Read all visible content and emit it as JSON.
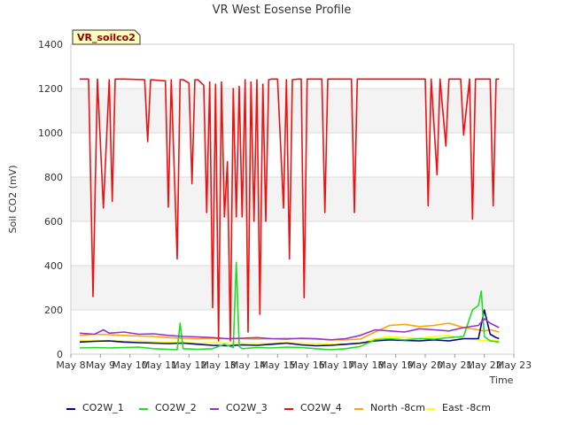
{
  "chart_data": {
    "type": "line",
    "title": "VR West Eosense Profile",
    "site_label": "VR_soilco2",
    "xlabel": "Time",
    "ylabel": "Soil CO2 (mV)",
    "ylim": [
      0,
      1400
    ],
    "yticks": [
      0,
      200,
      400,
      600,
      800,
      1000,
      1200,
      1400
    ],
    "xlim": [
      "May 8",
      "May 23"
    ],
    "xtick_labels": [
      "May 8",
      "May 9",
      "May 10",
      "May 11",
      "May 12",
      "May 13",
      "May 14",
      "May 15",
      "May 16",
      "May 17",
      "May 18",
      "May 19",
      "May 20",
      "May 21",
      "May 22",
      "May 23"
    ],
    "grid": true,
    "legend_position": "bottom",
    "series": [
      {
        "name": "CO2W_1",
        "color": "#00008b",
        "x": [
          8.3,
          8.8,
          9.3,
          9.8,
          10.3,
          10.8,
          11.3,
          11.8,
          12.3,
          12.8,
          13.3,
          13.8,
          14.3,
          14.8,
          15.3,
          15.8,
          16.3,
          16.8,
          17.3,
          17.8,
          18.3,
          18.8,
          19.3,
          19.8,
          20.3,
          20.8,
          21.3,
          21.8,
          22.0,
          22.2,
          22.4,
          22.5
        ],
        "y": [
          55,
          58,
          60,
          55,
          52,
          50,
          48,
          50,
          45,
          40,
          38,
          42,
          40,
          45,
          50,
          42,
          38,
          40,
          45,
          50,
          60,
          65,
          62,
          60,
          65,
          60,
          70,
          70,
          200,
          90,
          75,
          70
        ]
      },
      {
        "name": "CO2W_2",
        "color": "#22dd22",
        "x": [
          8.3,
          8.8,
          9.3,
          9.8,
          10.3,
          10.8,
          11.3,
          11.6,
          11.7,
          11.8,
          12.3,
          12.8,
          13.2,
          13.5,
          13.6,
          13.7,
          13.8,
          14.3,
          14.8,
          15.3,
          15.8,
          16.3,
          16.8,
          17.3,
          17.8,
          18.3,
          18.8,
          19.3,
          19.8,
          20.3,
          20.8,
          21.3,
          21.6,
          21.8,
          21.9,
          22.0,
          22.2,
          22.5
        ],
        "y": [
          28,
          30,
          28,
          30,
          32,
          25,
          22,
          20,
          140,
          25,
          22,
          25,
          45,
          30,
          415,
          35,
          25,
          30,
          28,
          32,
          30,
          25,
          20,
          25,
          35,
          65,
          70,
          65,
          70,
          68,
          75,
          80,
          200,
          220,
          285,
          80,
          60,
          55
        ]
      },
      {
        "name": "CO2W_3",
        "color": "#9932cc",
        "x": [
          8.3,
          8.8,
          9.1,
          9.3,
          9.8,
          10.3,
          10.8,
          11.3,
          11.8,
          12.3,
          12.8,
          13.3,
          13.8,
          14.3,
          14.8,
          15.3,
          15.8,
          16.3,
          16.8,
          17.3,
          17.8,
          18.3,
          18.8,
          19.3,
          19.8,
          20.3,
          20.8,
          21.3,
          21.8,
          22.0,
          22.2,
          22.5
        ],
        "y": [
          95,
          90,
          110,
          95,
          100,
          90,
          92,
          85,
          80,
          78,
          75,
          70,
          72,
          75,
          70,
          68,
          72,
          70,
          65,
          70,
          85,
          110,
          105,
          100,
          115,
          110,
          105,
          120,
          130,
          160,
          140,
          120
        ]
      },
      {
        "name": "CO2W_4",
        "color": "#ee1111",
        "x": [
          8.3,
          8.6,
          8.75,
          8.9,
          9.1,
          9.3,
          9.4,
          9.5,
          9.6,
          9.8,
          10.5,
          10.6,
          10.7,
          11.2,
          11.3,
          11.4,
          11.6,
          11.7,
          11.8,
          12.0,
          12.1,
          12.2,
          12.3,
          12.5,
          12.6,
          12.7,
          12.8,
          12.9,
          13.0,
          13.1,
          13.2,
          13.3,
          13.4,
          13.5,
          13.6,
          13.7,
          13.8,
          13.9,
          14.0,
          14.1,
          14.2,
          14.3,
          14.4,
          14.5,
          14.6,
          14.7,
          14.8,
          15.0,
          15.2,
          15.3,
          15.4,
          15.5,
          15.7,
          15.8,
          15.9,
          16.0,
          16.2,
          16.3,
          16.5,
          16.6,
          16.7,
          16.9,
          17.0,
          17.5,
          17.6,
          17.7,
          17.8,
          17.9,
          18.5,
          19.0,
          19.5,
          20.0,
          20.1,
          20.2,
          20.4,
          20.5,
          20.7,
          20.8,
          21.0,
          21.2,
          21.3,
          21.5,
          21.6,
          21.7,
          21.8,
          21.9,
          22.0,
          22.2,
          22.3,
          22.4,
          22.5
        ],
        "y": [
          1243,
          1243,
          260,
          1243,
          660,
          1240,
          690,
          1243,
          1243,
          1243,
          1240,
          960,
          1240,
          1235,
          665,
          1240,
          430,
          1240,
          1240,
          1225,
          770,
          1240,
          1240,
          1215,
          640,
          1230,
          210,
          1220,
          60,
          1230,
          620,
          870,
          60,
          1200,
          620,
          1210,
          620,
          1240,
          100,
          1230,
          600,
          1240,
          180,
          1220,
          600,
          1240,
          1243,
          1243,
          660,
          1240,
          430,
          1240,
          1243,
          1243,
          255,
          1243,
          1243,
          1243,
          1243,
          640,
          1243,
          1243,
          1243,
          1243,
          640,
          1243,
          1243,
          1243,
          1243,
          1243,
          1243,
          1243,
          670,
          1243,
          810,
          1243,
          940,
          1243,
          1243,
          1243,
          990,
          1243,
          610,
          1243,
          1243,
          1243,
          1243,
          1243,
          670,
          1243,
          1243
        ]
      },
      {
        "name": "North -8cm",
        "color": "#ffa500",
        "x": [
          8.3,
          8.8,
          9.3,
          9.8,
          10.3,
          10.8,
          11.3,
          11.8,
          12.3,
          12.8,
          13.3,
          13.8,
          14.3,
          14.8,
          15.3,
          15.8,
          16.3,
          16.8,
          17.3,
          17.8,
          18.3,
          18.8,
          19.3,
          19.8,
          20.3,
          20.8,
          21.3,
          21.8,
          22.0,
          22.2,
          22.5
        ],
        "y": [
          85,
          90,
          88,
          85,
          82,
          80,
          75,
          72,
          70,
          72,
          70,
          70,
          68,
          70,
          72,
          70,
          68,
          65,
          65,
          68,
          100,
          130,
          135,
          125,
          130,
          140,
          120,
          110,
          105,
          110,
          100
        ]
      },
      {
        "name": "East -8cm",
        "color": "#ffff00",
        "x": [
          8.3,
          8.8,
          9.3,
          9.8,
          10.3,
          10.8,
          11.3,
          11.8,
          12.3,
          12.8,
          13.3,
          13.8,
          14.3,
          14.8,
          15.3,
          15.8,
          16.3,
          16.8,
          17.3,
          17.8,
          18.3,
          18.8,
          19.3,
          19.8,
          20.3,
          20.8,
          21.3,
          21.8,
          22.0,
          22.2,
          22.5
        ],
        "y": [
          60,
          62,
          60,
          58,
          60,
          55,
          55,
          52,
          50,
          52,
          50,
          50,
          48,
          50,
          52,
          50,
          48,
          45,
          45,
          48,
          70,
          80,
          75,
          72,
          80,
          85,
          70,
          65,
          60,
          62,
          60
        ]
      }
    ]
  }
}
